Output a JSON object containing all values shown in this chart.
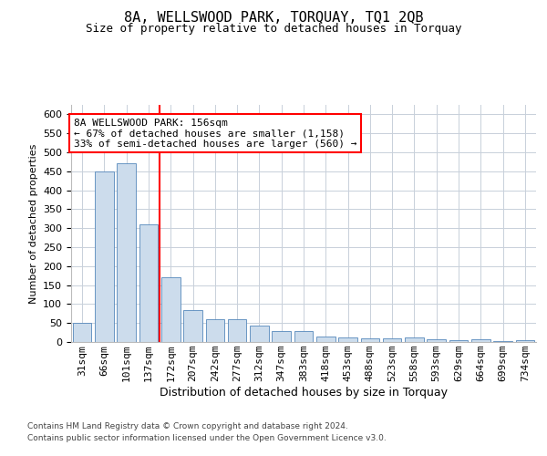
{
  "title1": "8A, WELLSWOOD PARK, TORQUAY, TQ1 2QB",
  "title2": "Size of property relative to detached houses in Torquay",
  "xlabel": "Distribution of detached houses by size in Torquay",
  "ylabel": "Number of detached properties",
  "categories": [
    "31sqm",
    "66sqm",
    "101sqm",
    "137sqm",
    "172sqm",
    "207sqm",
    "242sqm",
    "277sqm",
    "312sqm",
    "347sqm",
    "383sqm",
    "418sqm",
    "453sqm",
    "488sqm",
    "523sqm",
    "558sqm",
    "593sqm",
    "629sqm",
    "664sqm",
    "699sqm",
    "734sqm"
  ],
  "values": [
    50,
    450,
    470,
    310,
    170,
    85,
    60,
    60,
    43,
    30,
    30,
    15,
    12,
    10,
    10,
    12,
    7,
    5,
    7,
    2,
    5
  ],
  "bar_color": "#ccdcec",
  "bar_edge_color": "#5588bb",
  "grid_color": "#c8d0da",
  "vline_color": "red",
  "vline_x_index": 3.5,
  "annotation_text": "8A WELLSWOOD PARK: 156sqm\n← 67% of detached houses are smaller (1,158)\n33% of semi-detached houses are larger (560) →",
  "annotation_box_color": "white",
  "annotation_box_edge": "red",
  "footer1": "Contains HM Land Registry data © Crown copyright and database right 2024.",
  "footer2": "Contains public sector information licensed under the Open Government Licence v3.0.",
  "ylim": [
    0,
    625
  ],
  "yticks": [
    0,
    50,
    100,
    150,
    200,
    250,
    300,
    350,
    400,
    450,
    500,
    550,
    600
  ],
  "fig_bg": "white",
  "title1_fontsize": 11,
  "title2_fontsize": 9,
  "ylabel_fontsize": 8,
  "xlabel_fontsize": 9,
  "tick_fontsize": 8,
  "annot_fontsize": 8,
  "footer_fontsize": 6.5
}
